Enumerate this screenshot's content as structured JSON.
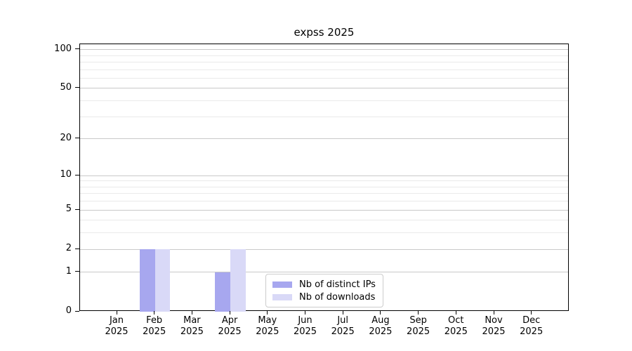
{
  "chart_data": {
    "type": "bar",
    "title": "expss 2025",
    "categories": [
      {
        "month": "Jan",
        "year": "2025"
      },
      {
        "month": "Feb",
        "year": "2025"
      },
      {
        "month": "Mar",
        "year": "2025"
      },
      {
        "month": "Apr",
        "year": "2025"
      },
      {
        "month": "May",
        "year": "2025"
      },
      {
        "month": "Jun",
        "year": "2025"
      },
      {
        "month": "Jul",
        "year": "2025"
      },
      {
        "month": "Aug",
        "year": "2025"
      },
      {
        "month": "Sep",
        "year": "2025"
      },
      {
        "month": "Oct",
        "year": "2025"
      },
      {
        "month": "Nov",
        "year": "2025"
      },
      {
        "month": "Dec",
        "year": "2025"
      }
    ],
    "series": [
      {
        "name": "Nb of distinct IPs",
        "color": "#a7a7ef",
        "values": [
          0,
          2,
          0,
          1,
          0,
          0,
          0,
          0,
          0,
          0,
          0,
          0
        ]
      },
      {
        "name": "Nb of downloads",
        "color": "#d9d9f7",
        "values": [
          0,
          2,
          0,
          2,
          0,
          0,
          0,
          0,
          0,
          0,
          0,
          0
        ]
      }
    ],
    "y_axis": {
      "scale": "log1p",
      "max": 110,
      "labeled_ticks": [
        0,
        1,
        2,
        5,
        10,
        20,
        50,
        100
      ],
      "major_gridlines": [
        1,
        2,
        5,
        10,
        20,
        50,
        100
      ],
      "minor_gridlines": [
        3,
        4,
        6,
        7,
        8,
        9,
        30,
        40,
        60,
        70,
        80,
        90
      ]
    },
    "legend": {
      "position": "bottom-center"
    },
    "colors": {
      "major_grid": "#c9c9c9",
      "minor_grid": "#eaeaea",
      "axis": "#000000",
      "legend_border": "#cccccc",
      "background": "#ffffff",
      "text": "#000000"
    }
  }
}
